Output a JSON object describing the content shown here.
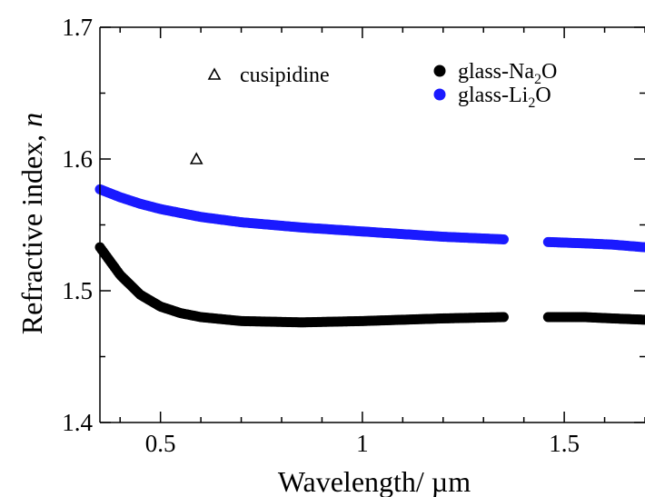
{
  "chart_data": {
    "type": "scatter",
    "xlabel": "Wavelength/ µm",
    "ylabel_main": "Refractive index, ",
    "ylabel_var": "n",
    "xlim": [
      0.35,
      1.7
    ],
    "ylim": [
      1.4,
      1.7
    ],
    "x_ticks": [
      {
        "value": 0.5,
        "label": "0.5"
      },
      {
        "value": 1.0,
        "label": "1"
      },
      {
        "value": 1.5,
        "label": "1.5"
      }
    ],
    "y_ticks": [
      {
        "value": 1.4,
        "label": "1.4"
      },
      {
        "value": 1.5,
        "label": "1.5"
      },
      {
        "value": 1.6,
        "label": "1.6"
      },
      {
        "value": 1.7,
        "label": "1.7"
      }
    ],
    "grid": false,
    "legend_placement": "top-right",
    "series": [
      {
        "name": "glass-Na2O",
        "legend_parts": [
          "glass-Na",
          "2",
          "O"
        ],
        "marker": "filled-circle",
        "color": "#000000",
        "segments": [
          {
            "x_start": 0.35,
            "x_end": 1.35,
            "points": [
              [
                0.35,
                1.533
              ],
              [
                0.4,
                1.512
              ],
              [
                0.45,
                1.497
              ],
              [
                0.5,
                1.488
              ],
              [
                0.55,
                1.483
              ],
              [
                0.6,
                1.48
              ],
              [
                0.7,
                1.477
              ],
              [
                0.85,
                1.476
              ],
              [
                1.0,
                1.477
              ],
              [
                1.2,
                1.479
              ],
              [
                1.35,
                1.48
              ]
            ]
          },
          {
            "x_start": 1.46,
            "x_end": 1.7,
            "points": [
              [
                1.46,
                1.48
              ],
              [
                1.55,
                1.48
              ],
              [
                1.62,
                1.479
              ],
              [
                1.7,
                1.478
              ]
            ]
          }
        ]
      },
      {
        "name": "glass-Li2O",
        "legend_parts": [
          "glass-Li",
          "2",
          "O"
        ],
        "marker": "filled-circle",
        "color": "#1a1aff",
        "segments": [
          {
            "x_start": 0.35,
            "x_end": 1.35,
            "points": [
              [
                0.35,
                1.577
              ],
              [
                0.4,
                1.571
              ],
              [
                0.45,
                1.566
              ],
              [
                0.5,
                1.562
              ],
              [
                0.6,
                1.556
              ],
              [
                0.7,
                1.552
              ],
              [
                0.85,
                1.548
              ],
              [
                1.0,
                1.545
              ],
              [
                1.2,
                1.541
              ],
              [
                1.35,
                1.539
              ]
            ]
          },
          {
            "x_start": 1.46,
            "x_end": 1.7,
            "points": [
              [
                1.46,
                1.537
              ],
              [
                1.55,
                1.536
              ],
              [
                1.62,
                1.535
              ],
              [
                1.7,
                1.533
              ]
            ]
          }
        ]
      },
      {
        "name": "cusipidine",
        "marker": "open-triangle",
        "color": "#000000",
        "points": [
          [
            0.589,
            1.6
          ]
        ]
      }
    ]
  }
}
